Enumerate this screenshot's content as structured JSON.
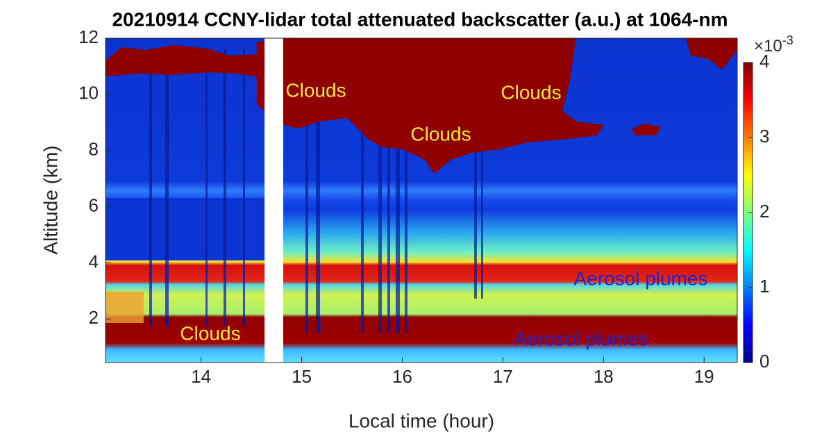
{
  "chart_data": {
    "type": "heatmap",
    "title": "20210914 CCNY-lidar total attenuated backscatter (a.u.) at 1064-nm",
    "x_label": "Local time (hour)",
    "y_label": "Altitude (km)",
    "xlim": [
      13.05,
      19.33
    ],
    "xticks": [
      14,
      15,
      16,
      17,
      18,
      19
    ],
    "ylim": [
      0.45,
      12
    ],
    "yticks": [
      2,
      4,
      6,
      8,
      10,
      12
    ],
    "colormap": "jet",
    "colorbar": {
      "lim": [
        0,
        4
      ],
      "ticks": [
        0,
        1,
        2,
        3,
        4
      ],
      "exponent_base": "×10",
      "exponent_power": "-3"
    },
    "annotations": [
      {
        "text": "Clouds",
        "color": "#f5e83a"
      },
      {
        "text": "Clouds",
        "color": "#f5e83a"
      },
      {
        "text": "Clouds",
        "color": "#f5e83a"
      },
      {
        "text": "Clouds",
        "color": "#f5e83a"
      },
      {
        "text": "Aerosol plumes",
        "color": "#2424c8"
      },
      {
        "text": "Aerosol plumes",
        "color": "#2424c8"
      }
    ]
  }
}
